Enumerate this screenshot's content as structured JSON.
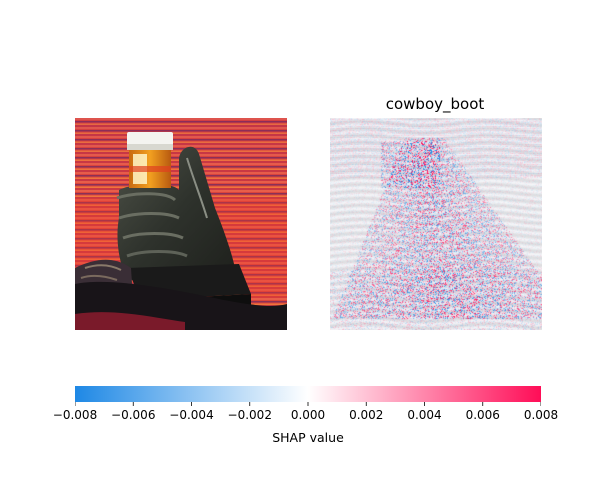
{
  "chart_data": {
    "type": "heatmap",
    "panels": [
      {
        "role": "input-image",
        "title": "",
        "content": "photo"
      },
      {
        "role": "shap-heatmap",
        "title": "cowboy_boot"
      }
    ],
    "colorbar": {
      "min": -0.008,
      "max": 0.008,
      "ticks": [
        -0.008,
        -0.006,
        -0.004,
        -0.002,
        0.0,
        0.002,
        0.004,
        0.006,
        0.008
      ],
      "tick_labels": [
        "−0.008",
        "−0.006",
        "−0.004",
        "−0.002",
        "0.000",
        "0.002",
        "0.004",
        "0.006",
        "0.008"
      ],
      "label": "SHAP value",
      "color_negative": "#1E88E5",
      "color_mid": "#FFFFFF",
      "color_positive": "#FF0D57",
      "orientation": "horizontal",
      "placement": "bottom"
    },
    "grid": false
  }
}
